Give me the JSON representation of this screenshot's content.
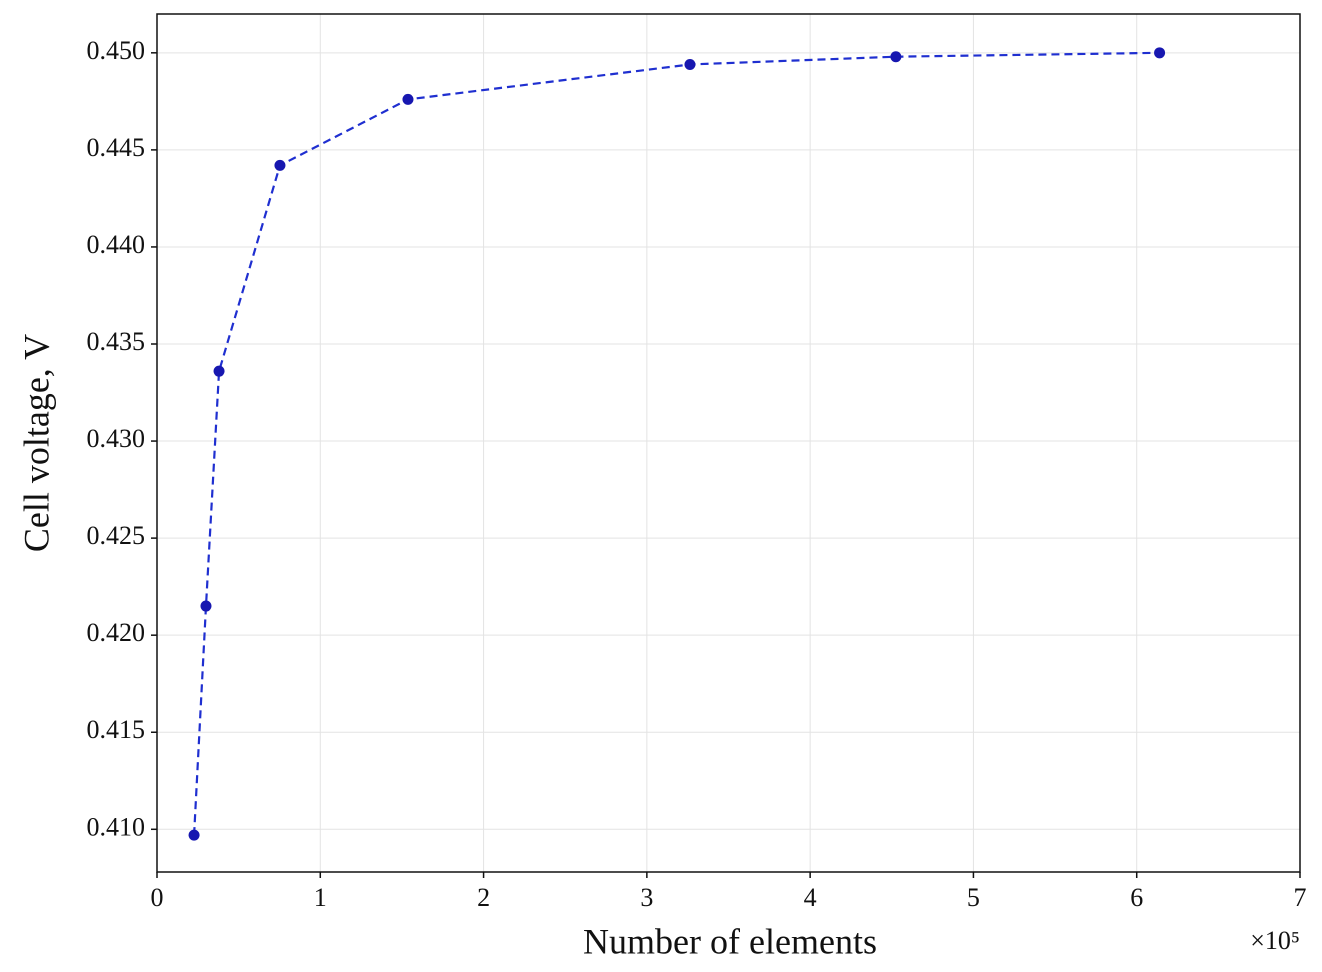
{
  "chart_data": {
    "type": "line",
    "x_label": "Number of elements",
    "y_label": "Cell voltage, V",
    "x_offset_text": "×10⁵",
    "x": [
      0.227,
      0.3,
      0.38,
      0.753,
      1.537,
      3.264,
      4.525,
      6.14
    ],
    "series": [
      {
        "color": "#1f2fd0",
        "marker_color": "#1717b0",
        "values": [
          0.4097,
          0.4215,
          0.4336,
          0.4442,
          0.4476,
          0.4494,
          0.4498,
          0.45
        ]
      }
    ],
    "xlim": [
      0,
      7
    ],
    "xticks": [
      0,
      1,
      2,
      3,
      4,
      5,
      6,
      7
    ],
    "ylim": [
      0.4078,
      0.452
    ],
    "yticks": [
      {
        "value": 0.41,
        "label": "0.410"
      },
      0.415,
      {
        "value": 0.42,
        "label": "0.420"
      },
      0.425,
      {
        "value": 0.43,
        "label": "0.430"
      },
      0.435,
      {
        "value": 0.44,
        "label": "0.440"
      },
      0.445,
      {
        "value": 0.45,
        "label": "0.450"
      }
    ],
    "grid": true,
    "line_style": "dashed"
  }
}
